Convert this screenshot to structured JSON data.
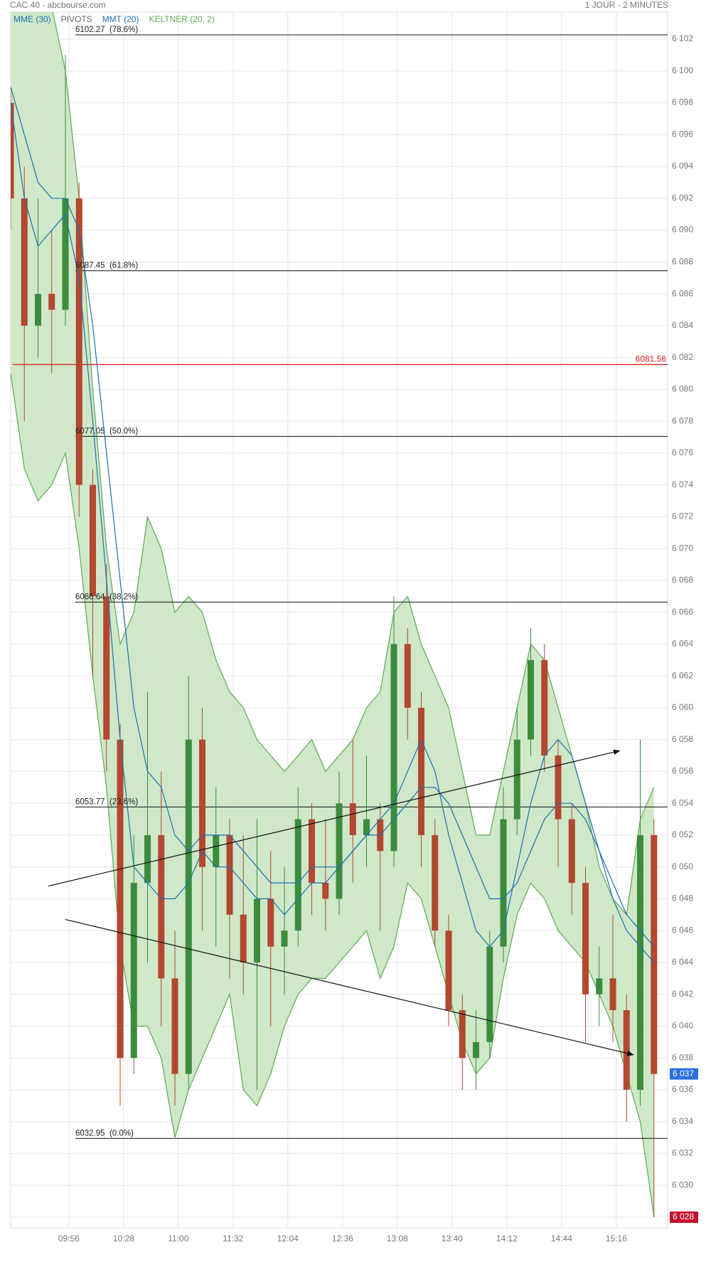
{
  "chart_data": {
    "type": "candlestick",
    "title": "CAC 40 - abcbourse.com",
    "subtitle": "1 JOUR - 2 MINUTES",
    "x": [
      "09:22",
      "09:30",
      "09:38",
      "09:46",
      "09:54",
      "10:02",
      "10:10",
      "10:18",
      "10:26",
      "10:34",
      "10:42",
      "10:50",
      "10:58",
      "11:06",
      "11:14",
      "11:22",
      "11:30",
      "11:38",
      "11:46",
      "11:54",
      "12:02",
      "12:10",
      "12:18",
      "12:26",
      "12:34",
      "12:42",
      "12:50",
      "12:58",
      "13:06",
      "13:14",
      "13:22",
      "13:30",
      "13:38",
      "13:46",
      "13:54",
      "14:02",
      "14:10",
      "14:18",
      "14:26",
      "14:34",
      "14:42",
      "14:50",
      "14:58",
      "15:06",
      "15:14",
      "15:22",
      "15:30",
      "15:38"
    ],
    "open": [
      6098,
      6092,
      6084,
      6086,
      6085,
      6092,
      6074,
      6067,
      6058,
      6038,
      6049,
      6052,
      6043,
      6037,
      6058,
      6050,
      6052,
      6047,
      6044,
      6048,
      6045,
      6046,
      6053,
      6049,
      6048,
      6054,
      6052,
      6053,
      6051,
      6064,
      6060,
      6052,
      6046,
      6041,
      6038,
      6039,
      6045,
      6053,
      6058,
      6063,
      6057,
      6053,
      6049,
      6042,
      6043,
      6041,
      6036,
      6052
    ],
    "high": [
      6099,
      6094,
      6092,
      6090,
      6101,
      6093,
      6075,
      6069,
      6059,
      6052,
      6061,
      6056,
      6046,
      6062,
      6060,
      6055,
      6053,
      6052,
      6053,
      6051,
      6050,
      6055,
      6054,
      6053,
      6056,
      6058,
      6057,
      6054,
      6067,
      6065,
      6061,
      6053,
      6047,
      6042,
      6041,
      6046,
      6055,
      6060,
      6065,
      6064,
      6058,
      6054,
      6050,
      6045,
      6047,
      6042,
      6058,
      6053
    ],
    "low": [
      6090,
      6078,
      6082,
      6081,
      6084,
      6072,
      6062,
      6056,
      6035,
      6037,
      6044,
      6040,
      6035,
      6036,
      6046,
      6045,
      6043,
      6042,
      6036,
      6040,
      6042,
      6045,
      6047,
      6046,
      6047,
      6049,
      6050,
      6046,
      6050,
      6058,
      6050,
      6045,
      6040,
      6036,
      6036,
      6038,
      6044,
      6052,
      6057,
      6056,
      6050,
      6047,
      6039,
      6040,
      6039,
      6034,
      6035,
      6028
    ],
    "close": [
      6092,
      6084,
      6086,
      6085,
      6092,
      6074,
      6067,
      6058,
      6038,
      6049,
      6052,
      6043,
      6037,
      6058,
      6050,
      6052,
      6047,
      6044,
      6048,
      6045,
      6046,
      6053,
      6049,
      6048,
      6054,
      6052,
      6053,
      6051,
      6064,
      6060,
      6052,
      6046,
      6041,
      6038,
      6039,
      6045,
      6053,
      6058,
      6063,
      6057,
      6053,
      6049,
      6042,
      6043,
      6041,
      6036,
      6052,
      6037
    ],
    "up_color": "#3d8b3d",
    "down_color": "#b3472f",
    "xlim": [
      "09:22",
      "15:46"
    ],
    "xticks": [
      "09:56",
      "10:28",
      "11:00",
      "11:32",
      "12:04",
      "12:36",
      "13:08",
      "13:40",
      "14:12",
      "14:44",
      "15:16"
    ],
    "ylim": [
      6027.33,
      6103.7
    ],
    "yticks": [
      {
        "value": 6028,
        "label": "6 028"
      },
      {
        "value": 6030,
        "label": "6 030"
      },
      {
        "value": 6032,
        "label": "6 032"
      },
      {
        "value": 6034,
        "label": "6 034"
      },
      {
        "value": 6036,
        "label": "6 036"
      },
      {
        "value": 6038,
        "label": "6 038"
      },
      {
        "value": 6040,
        "label": "6 040"
      },
      {
        "value": 6042,
        "label": "6 042"
      },
      {
        "value": 6044,
        "label": "6 044"
      },
      {
        "value": 6046,
        "label": "6 046"
      },
      {
        "value": 6048,
        "label": "6 048"
      },
      {
        "value": 6050,
        "label": "6 050"
      },
      {
        "value": 6052,
        "label": "6 052"
      },
      {
        "value": 6054,
        "label": "6 054"
      },
      {
        "value": 6056,
        "label": "6 056"
      },
      {
        "value": 6058,
        "label": "6 058"
      },
      {
        "value": 6060,
        "label": "6 060"
      },
      {
        "value": 6062,
        "label": "6 062"
      },
      {
        "value": 6064,
        "label": "6 064"
      },
      {
        "value": 6066,
        "label": "6 066"
      },
      {
        "value": 6068,
        "label": "6 068"
      },
      {
        "value": 6070,
        "label": "6 070"
      },
      {
        "value": 6072,
        "label": "6 072"
      },
      {
        "value": 6074,
        "label": "6 074"
      },
      {
        "value": 6076,
        "label": "6 076"
      },
      {
        "value": 6078,
        "label": "6 078"
      },
      {
        "value": 6080,
        "label": "6 080"
      },
      {
        "value": 6082,
        "label": "6 082"
      },
      {
        "value": 6084,
        "label": "6 084"
      },
      {
        "value": 6086,
        "label": "6 086"
      },
      {
        "value": 6088,
        "label": "6 088"
      },
      {
        "value": 6090,
        "label": "6 090"
      },
      {
        "value": 6092,
        "label": "6 092"
      },
      {
        "value": 6094,
        "label": "6 094"
      },
      {
        "value": 6096,
        "label": "6 096"
      },
      {
        "value": 6098,
        "label": "6 098"
      },
      {
        "value": 6100,
        "label": "6 100"
      },
      {
        "value": 6102,
        "label": "6 102"
      }
    ],
    "grid": true,
    "keltner": {
      "name": "KELTNER (20, 2)",
      "color": "#5fa855",
      "fill": "#c9e6c2",
      "upper": [
        6104,
        6104,
        6104,
        6104,
        6100,
        6092,
        6080,
        6070,
        6064,
        6066,
        6072,
        6070,
        6066,
        6067,
        6066,
        6063,
        6061,
        6060,
        6058,
        6057,
        6056,
        6057,
        6058,
        6056,
        6057,
        6058,
        6060,
        6061,
        6066,
        6067,
        6064,
        6062,
        6060,
        6056,
        6052,
        6052,
        6056,
        6060,
        6064,
        6063,
        6060,
        6057,
        6054,
        6050,
        6048,
        6047,
        6053,
        6055
      ],
      "lower": [
        6081,
        6075,
        6073,
        6074,
        6076,
        6070,
        6062,
        6055,
        6045,
        6040,
        6040,
        6038,
        6033,
        6036,
        6038,
        6040,
        6042,
        6036,
        6035,
        6037,
        6040,
        6042,
        6043,
        6043,
        6044,
        6045,
        6046,
        6043,
        6045,
        6049,
        6048,
        6045,
        6042,
        6039,
        6037,
        6038,
        6043,
        6047,
        6049,
        6048,
        6046,
        6045,
        6044,
        6042,
        6040,
        6037,
        6034,
        6028
      ]
    },
    "series": [
      {
        "name": "MME (30)",
        "color": "#1f6fb0",
        "values": [
          6099,
          6096,
          6093,
          6092,
          6092,
          6090,
          6084,
          6076,
          6068,
          6060,
          6056,
          6055,
          6052,
          6051,
          6052,
          6052,
          6052,
          6051,
          6050,
          6049,
          6049,
          6049,
          6050,
          6050,
          6050,
          6051,
          6052,
          6052,
          6053,
          6054,
          6055,
          6055,
          6054,
          6052,
          6050,
          6048,
          6048,
          6049,
          6051,
          6053,
          6054,
          6054,
          6053,
          6051,
          6049,
          6047,
          6046,
          6045
        ]
      },
      {
        "name": "MMT (20)",
        "color": "#1f6fb0",
        "values": [
          6098,
          6092,
          6089,
          6090,
          6091,
          6087,
          6078,
          6068,
          6058,
          6050,
          6049,
          6048,
          6048,
          6049,
          6051,
          6050,
          6050,
          6049,
          6048,
          6048,
          6047,
          6048,
          6049,
          6049,
          6050,
          6051,
          6052,
          6053,
          6054,
          6056,
          6058,
          6056,
          6052,
          6049,
          6046,
          6045,
          6046,
          6050,
          6054,
          6057,
          6058,
          6057,
          6054,
          6051,
          6048,
          6046,
          6045,
          6044
        ]
      }
    ],
    "pivots": {
      "name": "PIVOTS",
      "color": "#666666",
      "levels": [
        {
          "value": 6102.27,
          "label": "6102.27  (78.6%)"
        },
        {
          "value": 6087.45,
          "label": "6087.45  (61.8%)"
        },
        {
          "value": 6077.05,
          "label": "6077.05  (50.0%)"
        },
        {
          "value": 6066.64,
          "label": "6066.64  (38.2%)"
        },
        {
          "value": 6053.77,
          "label": "6053.77  (23.6%)"
        },
        {
          "value": 6032.95,
          "label": "6032.95  (0.0%)"
        }
      ]
    },
    "reference_lines": [
      {
        "value": 6081.56,
        "color": "#e02020"
      }
    ],
    "trend_lines": [
      {
        "x": [
          "09:44",
          "15:18"
        ],
        "y": [
          6048.8,
          6057.3
        ]
      },
      {
        "x": [
          "09:54",
          "15:26"
        ],
        "y": [
          6046.7,
          6038.2
        ]
      }
    ],
    "price_tags": [
      {
        "value": 6037,
        "label": "6 037",
        "color": "#2b6fe0"
      },
      {
        "value": 6028,
        "label": "6 028",
        "color": "#c8102e"
      }
    ]
  }
}
